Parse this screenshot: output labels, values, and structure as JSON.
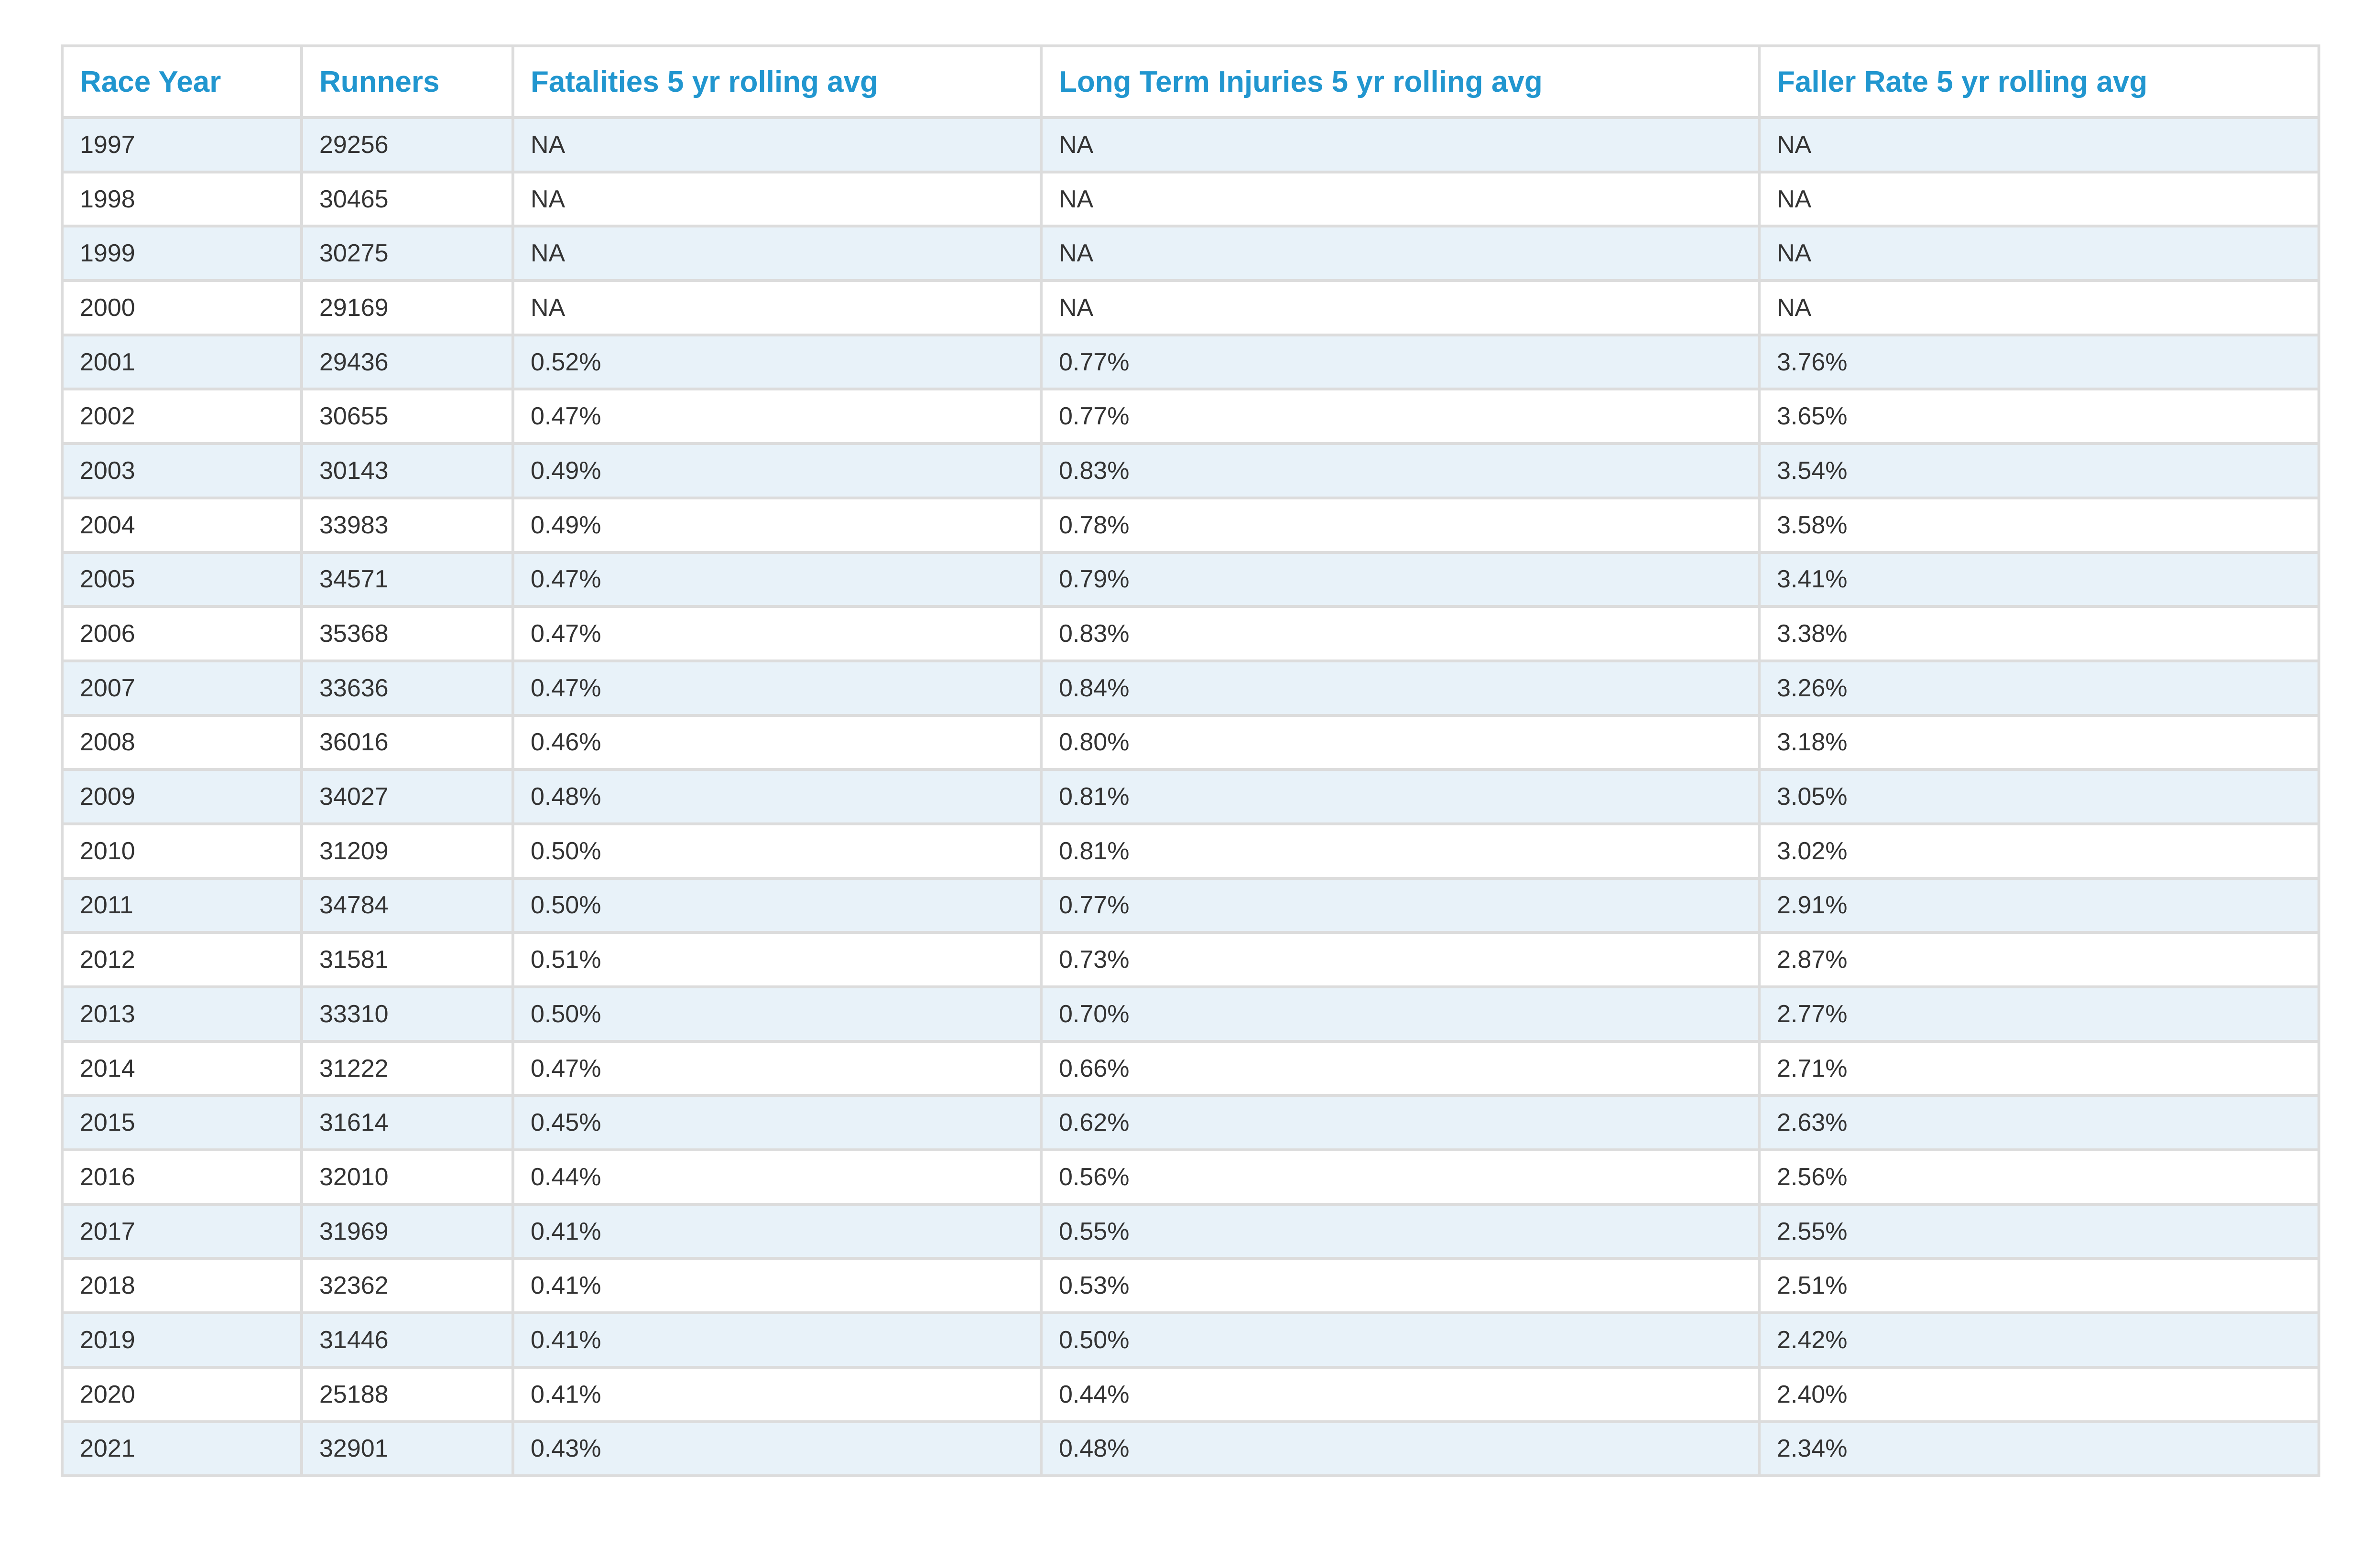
{
  "table": {
    "headers": [
      "Race Year",
      "Runners",
      "Fatalities 5 yr rolling avg",
      "Long Term Injuries 5 yr rolling avg",
      "Faller Rate 5 yr rolling avg"
    ],
    "rows": [
      [
        "1997",
        "29256",
        "NA",
        "NA",
        "NA"
      ],
      [
        "1998",
        "30465",
        "NA",
        "NA",
        "NA"
      ],
      [
        "1999",
        "30275",
        "NA",
        "NA",
        "NA"
      ],
      [
        "2000",
        "29169",
        "NA",
        "NA",
        "NA"
      ],
      [
        "2001",
        "29436",
        "0.52%",
        "0.77%",
        "3.76%"
      ],
      [
        "2002",
        "30655",
        "0.47%",
        "0.77%",
        "3.65%"
      ],
      [
        "2003",
        "30143",
        "0.49%",
        "0.83%",
        "3.54%"
      ],
      [
        "2004",
        "33983",
        "0.49%",
        "0.78%",
        "3.58%"
      ],
      [
        "2005",
        "34571",
        "0.47%",
        "0.79%",
        "3.41%"
      ],
      [
        "2006",
        "35368",
        "0.47%",
        "0.83%",
        "3.38%"
      ],
      [
        "2007",
        "33636",
        "0.47%",
        "0.84%",
        "3.26%"
      ],
      [
        "2008",
        "36016",
        "0.46%",
        "0.80%",
        "3.18%"
      ],
      [
        "2009",
        "34027",
        "0.48%",
        "0.81%",
        "3.05%"
      ],
      [
        "2010",
        "31209",
        "0.50%",
        "0.81%",
        "3.02%"
      ],
      [
        "2011",
        "34784",
        "0.50%",
        "0.77%",
        "2.91%"
      ],
      [
        "2012",
        "31581",
        "0.51%",
        "0.73%",
        "2.87%"
      ],
      [
        "2013",
        "33310",
        "0.50%",
        "0.70%",
        "2.77%"
      ],
      [
        "2014",
        "31222",
        "0.47%",
        "0.66%",
        "2.71%"
      ],
      [
        "2015",
        "31614",
        "0.45%",
        "0.62%",
        "2.63%"
      ],
      [
        "2016",
        "32010",
        "0.44%",
        "0.56%",
        "2.56%"
      ],
      [
        "2017",
        "31969",
        "0.41%",
        "0.55%",
        "2.55%"
      ],
      [
        "2018",
        "32362",
        "0.41%",
        "0.53%",
        "2.51%"
      ],
      [
        "2019",
        "31446",
        "0.41%",
        "0.50%",
        "2.42%"
      ],
      [
        "2020",
        "25188",
        "0.41%",
        "0.44%",
        "2.40%"
      ],
      [
        "2021",
        "32901",
        "0.43%",
        "0.48%",
        "2.34%"
      ]
    ]
  },
  "colors": {
    "header_text": "#2196cf",
    "body_text": "#333333",
    "stripe": "#e8f2f9",
    "border": "#dcdcdc"
  }
}
